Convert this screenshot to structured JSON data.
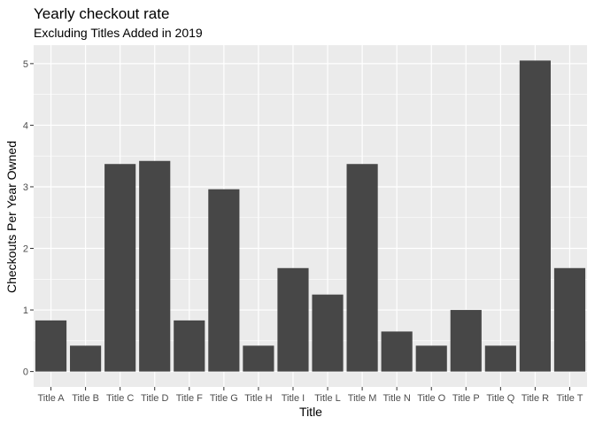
{
  "chart_data": {
    "type": "bar",
    "title": "Yearly checkout rate",
    "subtitle": "Excluding Titles Added in 2019",
    "xlabel": "Title",
    "ylabel": "Checkouts Per Year Owned",
    "categories": [
      "Title A",
      "Title B",
      "Title C",
      "Title D",
      "Title F",
      "Title G",
      "Title H",
      "Title I",
      "Title L",
      "Title M",
      "Title N",
      "Title O",
      "Title P",
      "Title Q",
      "Title R",
      "Title T"
    ],
    "values": [
      0.83,
      0.42,
      3.37,
      3.42,
      0.83,
      2.96,
      0.42,
      1.68,
      1.25,
      3.37,
      0.65,
      0.42,
      1.0,
      0.42,
      5.05,
      1.68
    ],
    "yticks": [
      0,
      1,
      2,
      3,
      4,
      5
    ],
    "ylim": [
      -0.25,
      5.3
    ],
    "grid": true,
    "legend": "none",
    "colors": {
      "panel": "#ebebeb",
      "grid_major": "#ffffff",
      "bar": "#474747",
      "tick_text": "#4d4d4d"
    }
  }
}
